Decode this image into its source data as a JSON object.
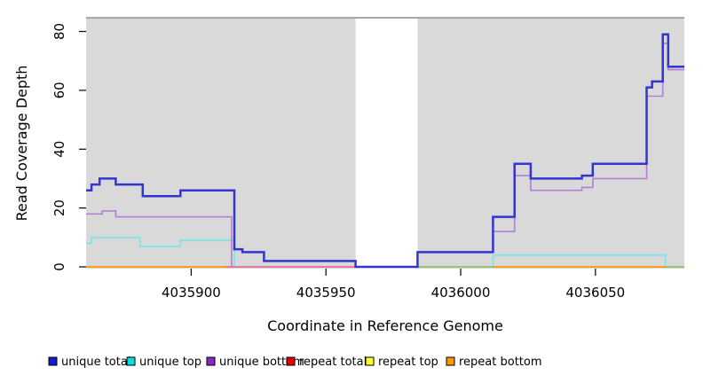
{
  "figure": {
    "background": "#ffffff",
    "panel_bg": "#d9d9d9",
    "panel_border_color": "#909090",
    "tick_color": "#000000"
  },
  "chart_data": {
    "type": "line",
    "subtype": "step-coverage",
    "title": "",
    "xlabel": "Coordinate in Reference Genome",
    "ylabel": "Read Coverage Depth",
    "xlim": [
      4035861,
      4036083
    ],
    "ylim": [
      0,
      84
    ],
    "x_ticks": [
      4035900,
      4035950,
      4036000,
      4036050
    ],
    "y_ticks": [
      0,
      20,
      40,
      60,
      80
    ],
    "grid": false,
    "legend_position": "bottom",
    "no_data_region": {
      "x_start": 4035961,
      "x_end": 4035984
    },
    "series": [
      {
        "name": "repeat total",
        "color": "#e00000",
        "width": 1.6,
        "steps": [
          [
            4035861,
            0
          ]
        ],
        "x_end": 4036083
      },
      {
        "name": "repeat top",
        "color": "#ffff2e",
        "width": 1.6,
        "steps": [
          [
            4035861,
            0
          ]
        ],
        "x_end": 4036083
      },
      {
        "name": "unique top",
        "color": "#84e3e6",
        "width": 2,
        "steps": [
          [
            4035861,
            8
          ],
          [
            4035863,
            10
          ],
          [
            4035881,
            7
          ],
          [
            4035896,
            9
          ],
          [
            4035916,
            0
          ],
          [
            4036012,
            4
          ],
          [
            4036076,
            0
          ]
        ],
        "x_end": 4036083
      },
      {
        "name": "unique bottom",
        "color": "#b37fd6",
        "width": 1.6,
        "steps": [
          [
            4035861,
            18
          ],
          [
            4035867,
            19
          ],
          [
            4035872,
            17
          ],
          [
            4035915,
            0
          ],
          [
            4035984,
            5
          ],
          [
            4036012,
            12
          ],
          [
            4036020,
            31
          ],
          [
            4036026,
            26
          ],
          [
            4036045,
            27
          ],
          [
            4036049,
            30
          ],
          [
            4036069,
            58
          ],
          [
            4036075,
            76
          ],
          [
            4036077,
            67
          ]
        ],
        "x_end": 4036083
      },
      {
        "name": "repeat bottom",
        "color": "#ff9d14",
        "width": 2,
        "steps": [
          [
            4035861,
            0
          ]
        ],
        "x_end": 4036083
      },
      {
        "name": "unique total",
        "color": "#3434d1",
        "width": 2.5,
        "steps": [
          [
            4035861,
            26
          ],
          [
            4035863,
            28
          ],
          [
            4035866,
            30
          ],
          [
            4035872,
            28
          ],
          [
            4035882,
            24
          ],
          [
            4035896,
            26
          ],
          [
            4035916,
            6
          ],
          [
            4035919,
            5
          ],
          [
            4035927,
            2
          ],
          [
            4035961,
            0
          ],
          [
            4035984,
            5
          ],
          [
            4036012,
            17
          ],
          [
            4036020,
            35
          ],
          [
            4036026,
            30
          ],
          [
            4036045,
            31
          ],
          [
            4036049,
            35
          ],
          [
            4036069,
            61
          ],
          [
            4036071,
            63
          ],
          [
            4036075,
            79
          ],
          [
            4036077,
            68
          ]
        ],
        "x_end": 4036083
      }
    ],
    "baseline_visible_segments": [
      {
        "x_start": 4035913,
        "x_end": 4035961,
        "color": "#d86ecb",
        "width": 1.6
      },
      {
        "x_start": 4035984,
        "x_end": 4036012,
        "color": "#8cc98c",
        "width": 1.8
      },
      {
        "x_start": 4036076,
        "x_end": 4036083,
        "color": "#8cc98c",
        "width": 1.8
      }
    ]
  },
  "legend": {
    "items": [
      {
        "label": "unique total",
        "color": "#1a1acd"
      },
      {
        "label": "unique top",
        "color": "#00e0e0"
      },
      {
        "label": "unique bottom",
        "color": "#8c26c9"
      },
      {
        "label": "repeat total",
        "color": "#e00000"
      },
      {
        "label": "repeat top",
        "color": "#ffff2e"
      },
      {
        "label": "repeat bottom",
        "color": "#ff9700"
      }
    ]
  }
}
